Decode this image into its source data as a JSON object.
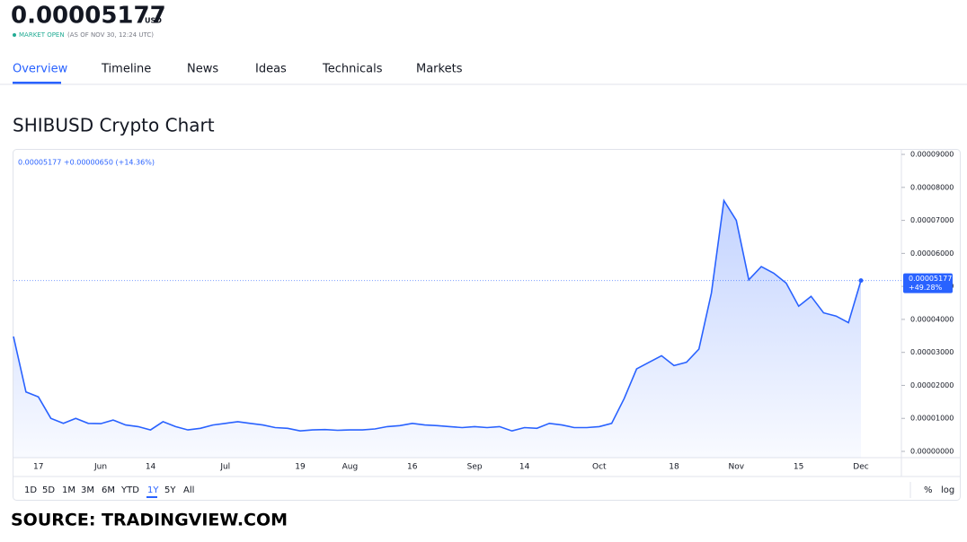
{
  "header": {
    "price": "0.00005177",
    "unit": "USD",
    "status": "MARKET OPEN",
    "as_of": "(AS OF NOV 30, 12:24 UTC)"
  },
  "tabs": [
    "Overview",
    "Timeline",
    "News",
    "Ideas",
    "Technicals",
    "Markets"
  ],
  "chart_title": "SHIBUSD Crypto Chart",
  "chart_data": {
    "type": "line",
    "legend_text": "0.00005177 +0.00000650 (+14.36%)",
    "last_change_label": "+49.28%",
    "color": "#2962ff",
    "categories": [
      null,
      null,
      "17",
      null,
      null,
      null,
      null,
      "Jun",
      null,
      null,
      null,
      "14",
      null,
      null,
      null,
      null,
      null,
      "Jul",
      null,
      null,
      null,
      null,
      null,
      "19",
      null,
      null,
      null,
      "Aug",
      null,
      null,
      null,
      null,
      "16",
      null,
      null,
      null,
      null,
      "Sep",
      null,
      null,
      null,
      "14",
      null,
      null,
      null,
      null,
      null,
      "Oct",
      null,
      null,
      null,
      null,
      null,
      "18",
      null,
      null,
      null,
      null,
      "Nov",
      null,
      null,
      null,
      null,
      "15",
      null,
      null,
      null,
      null,
      "Dec"
    ],
    "values": [
      3.48e-05,
      1.8e-05,
      1.65e-05,
      1e-05,
      8.5e-06,
      1e-05,
      8.5e-06,
      8.4e-06,
      9.5e-06,
      8e-06,
      7.5e-06,
      6.5e-06,
      9e-06,
      7.5e-06,
      6.5e-06,
      7e-06,
      8e-06,
      8.5e-06,
      9e-06,
      8.5e-06,
      8e-06,
      7.2e-06,
      7e-06,
      6.2e-06,
      6.5e-06,
      6.6e-06,
      6.4e-06,
      6.5e-06,
      6.5e-06,
      6.8e-06,
      7.5e-06,
      7.8e-06,
      8.5e-06,
      8e-06,
      7.8e-06,
      7.5e-06,
      7.2e-06,
      7.5e-06,
      7.2e-06,
      7.5e-06,
      6.2e-06,
      7.2e-06,
      7e-06,
      8.5e-06,
      8e-06,
      7.2e-06,
      7.2e-06,
      7.5e-06,
      8.5e-06,
      1.6e-05,
      2.5e-05,
      2.7e-05,
      2.9e-05,
      2.6e-05,
      2.7e-05,
      3.1e-05,
      4.8e-05,
      7.6e-05,
      7e-05,
      5.2e-05,
      5.6e-05,
      5.4e-05,
      5.1e-05,
      4.4e-05,
      4.7e-05,
      4.2e-05,
      4.1e-05,
      3.9e-05,
      5.177e-05
    ],
    "ylim": [
      -1.9e-06,
      9.11e-05
    ],
    "yticks": [
      {
        "value": 0,
        "label": "0.00000000"
      },
      {
        "value": 1e-05,
        "label": "0.00001000"
      },
      {
        "value": 2e-05,
        "label": "0.00002000"
      },
      {
        "value": 3e-05,
        "label": "0.00003000"
      },
      {
        "value": 4e-05,
        "label": "0.00004000"
      },
      {
        "value": 5e-05,
        "label": "0.00005000"
      },
      {
        "value": 6e-05,
        "label": "0.00006000"
      },
      {
        "value": 7e-05,
        "label": "0.00007000"
      },
      {
        "value": 8e-05,
        "label": "0.00008000"
      },
      {
        "value": 9e-05,
        "label": "0.00009000"
      }
    ]
  },
  "range_buttons": [
    "1D",
    "5D",
    "1M",
    "3M",
    "6M",
    "YTD",
    "1Y",
    "5Y",
    "All"
  ],
  "scale_buttons": [
    "%",
    "log"
  ],
  "source": "SOURCE: TRADINGVIEW.COM"
}
